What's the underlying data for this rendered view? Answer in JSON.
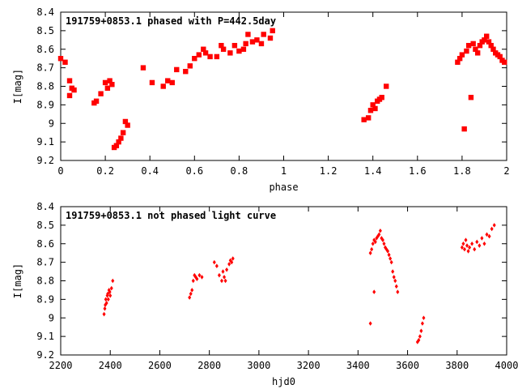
{
  "chart_data": [
    {
      "type": "scatter",
      "title": "191759+0853.1 phased with P=442.5day",
      "xlabel": "phase",
      "ylabel": "I[mag]",
      "xlim": [
        0,
        2
      ],
      "ylim": [
        8.4,
        9.2
      ],
      "y_inverted": true,
      "xticks": [
        "0",
        "0.2",
        "0.4",
        "0.6",
        "0.8",
        "1",
        "1.2",
        "1.4",
        "1.6",
        "1.8",
        "2"
      ],
      "yticks": [
        "8.4",
        "8.5",
        "8.6",
        "8.7",
        "8.8",
        "8.9",
        "9",
        "9.1",
        "9.2"
      ],
      "grid": false,
      "marker_color": "#ff0000",
      "series": [
        {
          "x": [
            0.0,
            0.02,
            0.04,
            0.04,
            0.05,
            0.06,
            0.15,
            0.16,
            0.18,
            0.2,
            0.21,
            0.22,
            0.23,
            0.24,
            0.25,
            0.26,
            0.27,
            0.28,
            0.29,
            0.3,
            0.37,
            0.41,
            0.46,
            0.48,
            0.5,
            0.52,
            0.56,
            0.58,
            0.6,
            0.62,
            0.64,
            0.65,
            0.67,
            0.7,
            0.72,
            0.73,
            0.76,
            0.78,
            0.8,
            0.82,
            0.83,
            0.84,
            0.86,
            0.88,
            0.9,
            0.91,
            0.94,
            0.95,
            1.36,
            1.38,
            1.39,
            1.4,
            1.41,
            1.42,
            1.43,
            1.44,
            1.46,
            1.78,
            1.79,
            1.8,
            1.81,
            1.82,
            1.83,
            1.84,
            1.85,
            1.86,
            1.87,
            1.88,
            1.89,
            1.9,
            1.91,
            1.92,
            1.93,
            1.94,
            1.95,
            1.96,
            1.97,
            1.98,
            1.99
          ],
          "y": [
            8.65,
            8.67,
            8.77,
            8.85,
            8.81,
            8.82,
            8.89,
            8.88,
            8.84,
            8.78,
            8.81,
            8.77,
            8.79,
            9.13,
            9.12,
            9.1,
            9.08,
            9.05,
            8.99,
            9.01,
            8.7,
            8.78,
            8.8,
            8.77,
            8.78,
            8.71,
            8.72,
            8.69,
            8.65,
            8.63,
            8.6,
            8.62,
            8.64,
            8.64,
            8.58,
            8.6,
            8.62,
            8.58,
            8.61,
            8.6,
            8.57,
            8.52,
            8.56,
            8.55,
            8.57,
            8.52,
            8.54,
            8.5,
            8.98,
            8.97,
            8.93,
            8.9,
            8.92,
            8.88,
            8.87,
            8.86,
            8.8,
            8.67,
            8.65,
            8.63,
            9.03,
            8.61,
            8.58,
            8.86,
            8.57,
            8.6,
            8.62,
            8.58,
            8.56,
            8.55,
            8.53,
            8.56,
            8.58,
            8.6,
            8.62,
            8.63,
            8.64,
            8.66,
            8.67
          ]
        }
      ]
    },
    {
      "type": "scatter",
      "title": "191759+0853.1 not phased light curve",
      "xlabel": "hjd0",
      "ylabel": "I[mag]",
      "xlim": [
        2200,
        4000
      ],
      "ylim": [
        8.4,
        9.2
      ],
      "y_inverted": true,
      "xticks": [
        "2200",
        "2400",
        "2600",
        "2800",
        "3000",
        "3200",
        "3400",
        "3600",
        "3800",
        "4000"
      ],
      "yticks": [
        "8.4",
        "8.5",
        "8.6",
        "8.7",
        "8.8",
        "8.9",
        "9",
        "9.1",
        "9.2"
      ],
      "grid": false,
      "marker_color": "#ff0000",
      "series": [
        {
          "x": [
            2375,
            2378,
            2380,
            2382,
            2385,
            2388,
            2390,
            2392,
            2395,
            2398,
            2400,
            2405,
            2410,
            2720,
            2725,
            2730,
            2735,
            2740,
            2745,
            2750,
            2760,
            2770,
            2820,
            2830,
            2840,
            2850,
            2855,
            2860,
            2865,
            2870,
            2880,
            2885,
            2890,
            2895,
            3450,
            3455,
            3460,
            3465,
            3470,
            3475,
            3480,
            3485,
            3490,
            3495,
            3500,
            3505,
            3510,
            3515,
            3520,
            3525,
            3530,
            3535,
            3540,
            3545,
            3550,
            3555,
            3560,
            3640,
            3645,
            3650,
            3655,
            3660,
            3665,
            3820,
            3825,
            3830,
            3835,
            3840,
            3845,
            3850,
            3860,
            3870,
            3880,
            3890,
            3900,
            3910,
            3920,
            3930,
            3940,
            3950
          ],
          "y": [
            8.98,
            8.95,
            8.93,
            8.9,
            8.92,
            8.88,
            8.87,
            8.9,
            8.85,
            8.86,
            8.88,
            8.84,
            8.8,
            8.89,
            8.87,
            8.85,
            8.8,
            8.77,
            8.78,
            8.79,
            8.77,
            8.78,
            8.7,
            8.72,
            8.77,
            8.8,
            8.75,
            8.78,
            8.8,
            8.74,
            8.71,
            8.69,
            8.7,
            8.68,
            8.65,
            8.63,
            8.6,
            8.58,
            8.59,
            8.57,
            8.56,
            8.55,
            8.53,
            8.57,
            8.58,
            8.6,
            8.62,
            8.63,
            8.64,
            8.66,
            8.68,
            8.7,
            8.75,
            8.78,
            8.8,
            8.83,
            8.86,
            9.13,
            9.12,
            9.1,
            9.07,
            9.03,
            9.0,
            8.62,
            8.6,
            8.63,
            8.58,
            8.61,
            8.64,
            8.62,
            8.6,
            8.63,
            8.59,
            8.61,
            8.57,
            8.6,
            8.55,
            8.56,
            8.52,
            8.5
          ]
        },
        {
          "x": [
            3450,
            3465
          ],
          "y": [
            9.03,
            8.86
          ]
        }
      ]
    }
  ]
}
